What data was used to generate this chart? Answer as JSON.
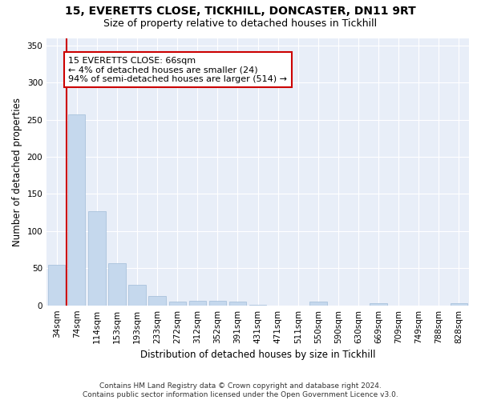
{
  "title_line1": "15, EVERETTS CLOSE, TICKHILL, DONCASTER, DN11 9RT",
  "title_line2": "Size of property relative to detached houses in Tickhill",
  "xlabel": "Distribution of detached houses by size in Tickhill",
  "ylabel": "Number of detached properties",
  "categories": [
    "34sqm",
    "74sqm",
    "114sqm",
    "153sqm",
    "193sqm",
    "233sqm",
    "272sqm",
    "312sqm",
    "352sqm",
    "391sqm",
    "431sqm",
    "471sqm",
    "511sqm",
    "550sqm",
    "590sqm",
    "630sqm",
    "669sqm",
    "709sqm",
    "749sqm",
    "788sqm",
    "828sqm"
  ],
  "values": [
    55,
    257,
    127,
    57,
    28,
    13,
    5,
    6,
    6,
    5,
    1,
    0,
    0,
    5,
    0,
    0,
    3,
    0,
    0,
    0,
    3
  ],
  "bar_color": "#c5d8ed",
  "bar_edge_color": "#a0bcd8",
  "bg_color": "#e8eef8",
  "grid_color": "#ffffff",
  "annotation_text": "15 EVERETTS CLOSE: 66sqm\n← 4% of detached houses are smaller (24)\n94% of semi-detached houses are larger (514) →",
  "annotation_box_color": "#ffffff",
  "annotation_box_edge": "#cc0000",
  "property_line_color": "#cc0000",
  "ylim": [
    0,
    360
  ],
  "yticks": [
    0,
    50,
    100,
    150,
    200,
    250,
    300,
    350
  ],
  "footnote": "Contains HM Land Registry data © Crown copyright and database right 2024.\nContains public sector information licensed under the Open Government Licence v3.0.",
  "title_fontsize": 10,
  "subtitle_fontsize": 9,
  "axis_label_fontsize": 8.5,
  "tick_fontsize": 7.5,
  "annotation_fontsize": 8,
  "footnote_fontsize": 6.5
}
